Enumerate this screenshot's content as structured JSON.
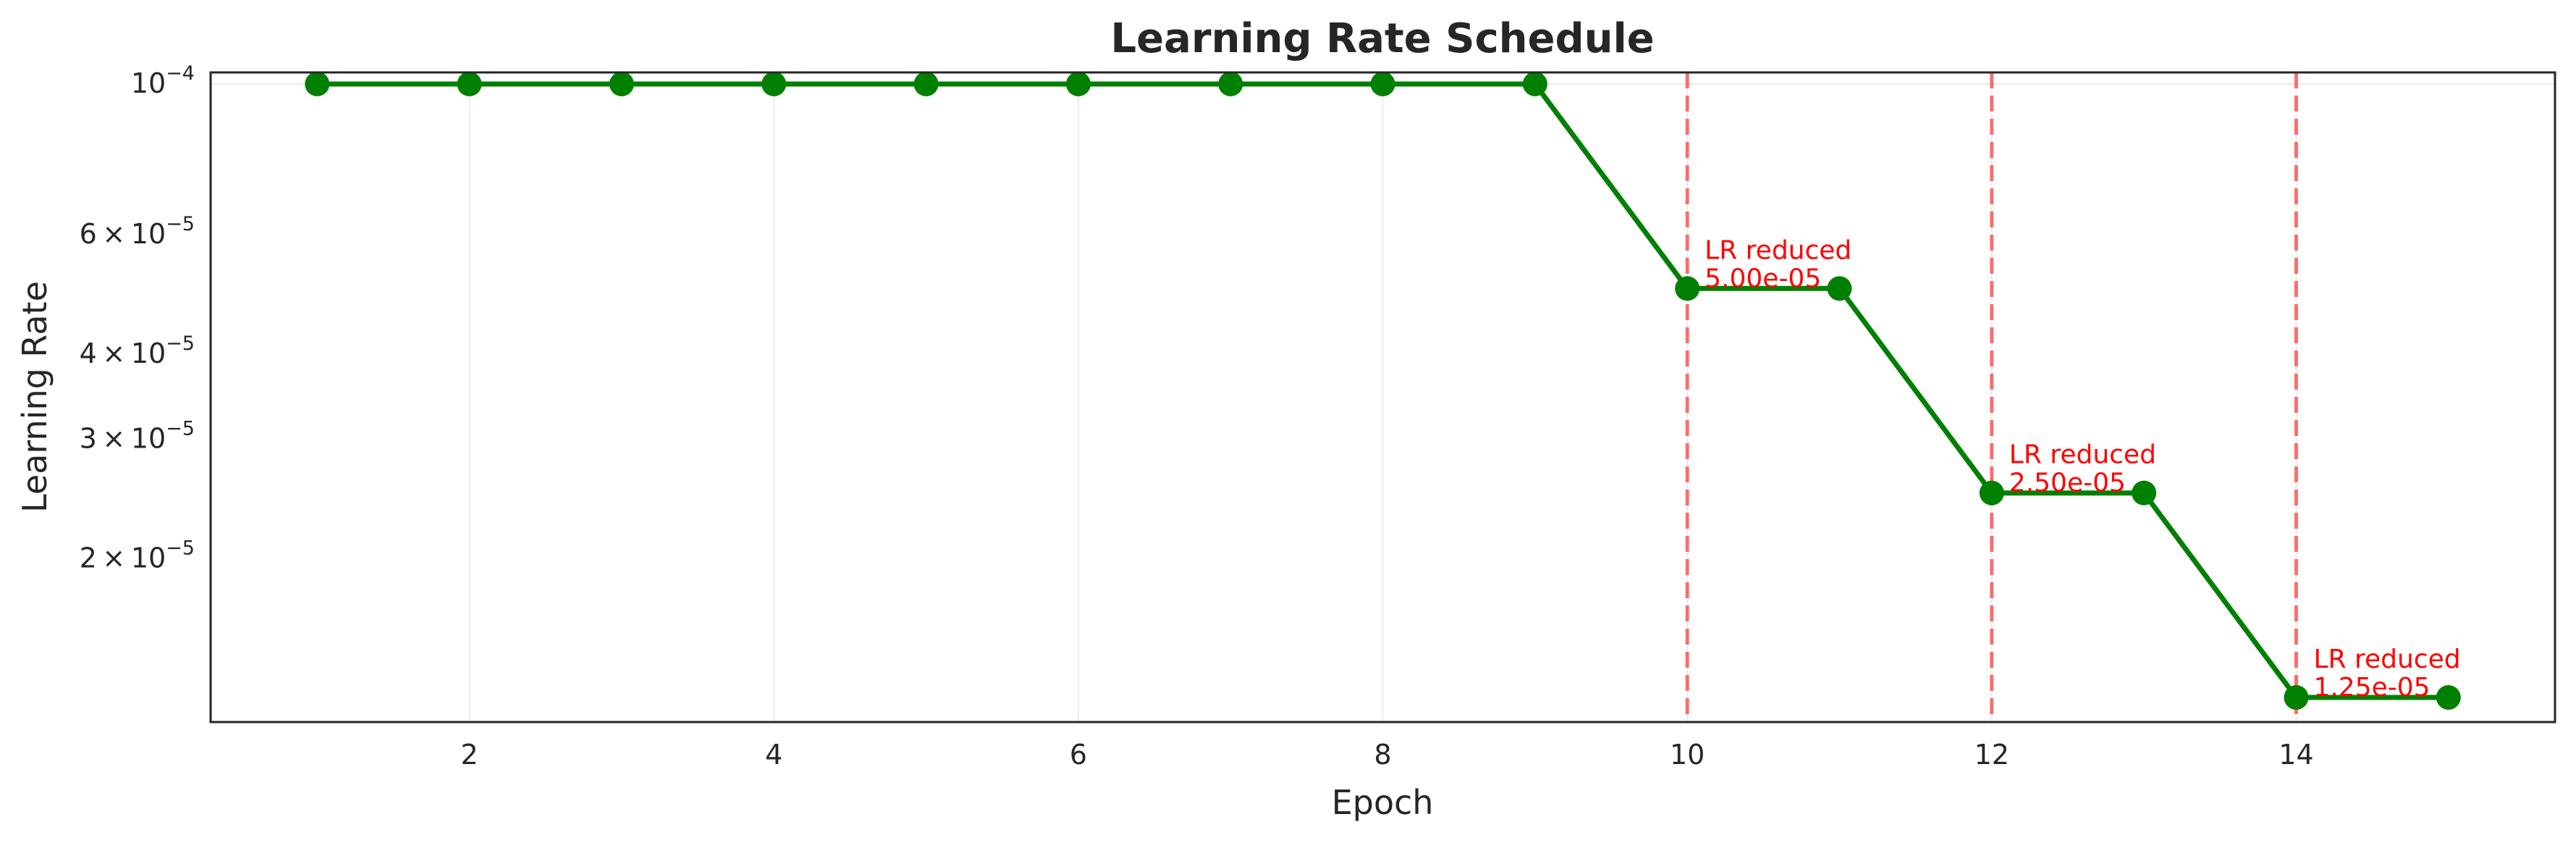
{
  "chart_data": {
    "type": "line",
    "title": "Learning Rate Schedule",
    "xlabel": "Epoch",
    "ylabel": "Learning Rate",
    "x": [
      1,
      2,
      3,
      4,
      5,
      6,
      7,
      8,
      9,
      10,
      11,
      12,
      13,
      14,
      15
    ],
    "series": [
      {
        "values": [
          0.0001,
          0.0001,
          0.0001,
          0.0001,
          0.0001,
          0.0001,
          0.0001,
          0.0001,
          0.0001,
          5e-05,
          5e-05,
          2.5e-05,
          2.5e-05,
          1.25e-05,
          1.25e-05
        ],
        "color": "#008000",
        "marker": "circle"
      }
    ],
    "x_ticks": [
      2,
      4,
      6,
      8,
      10,
      12,
      14
    ],
    "y_scale": "log",
    "y_ticks": [
      {
        "value": 0.0001,
        "mantissa": "",
        "exponent": "−4"
      },
      {
        "value": 6e-05,
        "mantissa": "6",
        "exponent": "−5"
      },
      {
        "value": 4e-05,
        "mantissa": "4",
        "exponent": "−5"
      },
      {
        "value": 3e-05,
        "mantissa": "3",
        "exponent": "−5"
      },
      {
        "value": 2e-05,
        "mantissa": "2",
        "exponent": "−5"
      }
    ],
    "xlim": [
      0.3,
      15.7
    ],
    "ylim": [
      1.15e-05,
      0.000104
    ],
    "grid": true,
    "reference_lines": {
      "axis": "x",
      "values": [
        10,
        12,
        14
      ],
      "color": "#ff0000",
      "style": "dashed"
    },
    "annotations": [
      {
        "x": 10,
        "y": 5e-05,
        "line1": "LR reduced",
        "line2": "5.00e-05"
      },
      {
        "x": 12,
        "y": 2.5e-05,
        "line1": "LR reduced",
        "line2": "2.50e-05"
      },
      {
        "x": 14,
        "y": 1.25e-05,
        "line1": "LR reduced",
        "line2": "1.25e-05"
      }
    ]
  }
}
